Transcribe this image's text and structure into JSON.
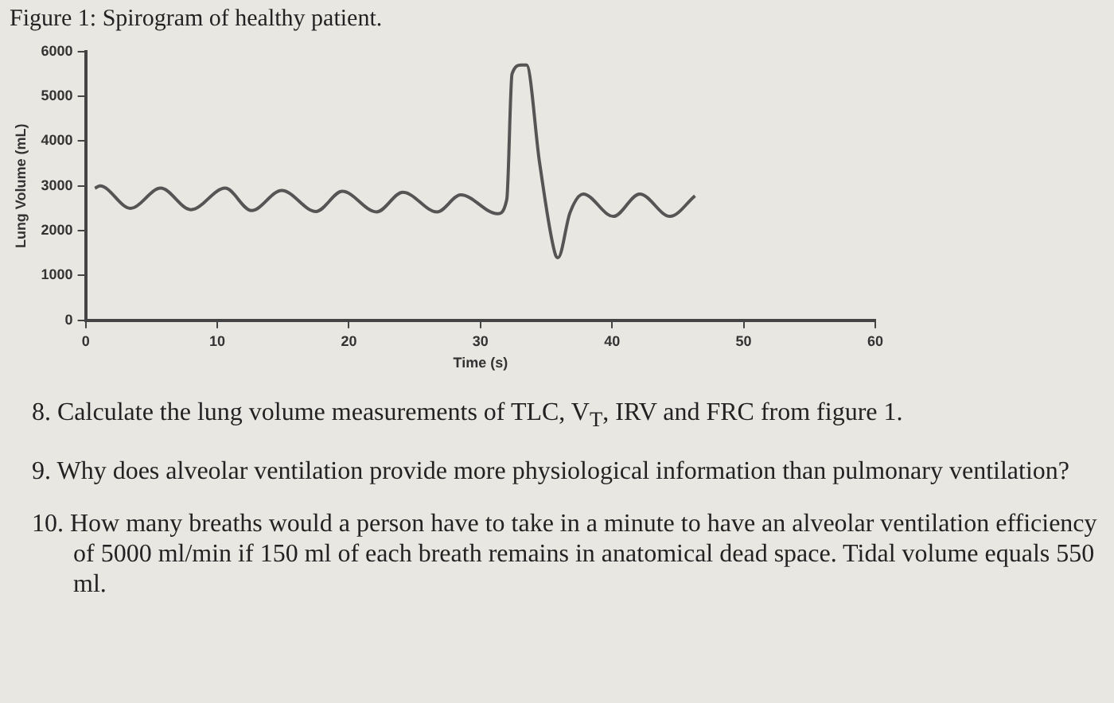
{
  "chart_data": {
    "type": "line",
    "title": "Figure 1: Spirogram of healthy patient.",
    "xlabel": "Time (s)",
    "ylabel": "Lung Volume (mL)",
    "series": [
      {
        "color": "#555555",
        "x": [
          0.7,
          1.1,
          3.4,
          5.7,
          8.0,
          10.6,
          12.6,
          14.9,
          17.5,
          19.5,
          22.1,
          24.1,
          26.7,
          28.5,
          31.3,
          32.0,
          32.4,
          33.1,
          33.5,
          34.5,
          35.7,
          35.9,
          36.8,
          37.8,
          40.1,
          42.1,
          44.4,
          46.3
        ],
        "values": [
          2950,
          3000,
          2500,
          2950,
          2470,
          2950,
          2450,
          2900,
          2430,
          2880,
          2420,
          2860,
          2420,
          2800,
          2380,
          2700,
          5500,
          5700,
          5700,
          3500,
          1460,
          1400,
          2400,
          2820,
          2320,
          2820,
          2320,
          2780
        ]
      }
    ],
    "xlim": [
      0,
      60
    ],
    "xticks": [
      0,
      10,
      20,
      30,
      40,
      50,
      60
    ],
    "ylim": [
      0,
      6000
    ],
    "yticks": [
      0,
      1000,
      2000,
      3000,
      4000,
      5000,
      6000
    ],
    "grid": false,
    "legend": false,
    "marker": "none",
    "line_style": "solid",
    "annotations": [
      "8.  Calculate the lung volume measurements of TLC, V$_{T}$, IRV and FRC from figure 1.",
      "9.  Why does alveolar ventilation provide more physiological information than pulmonary ventilation?",
      "10. How many breaths would a person have to take in a minute to have an alveolar ventilation efficiency of 5000 ml/min if 150 ml of each breath remains in anatomical dead space. Tidal volume equals 550 ml."
    ]
  }
}
